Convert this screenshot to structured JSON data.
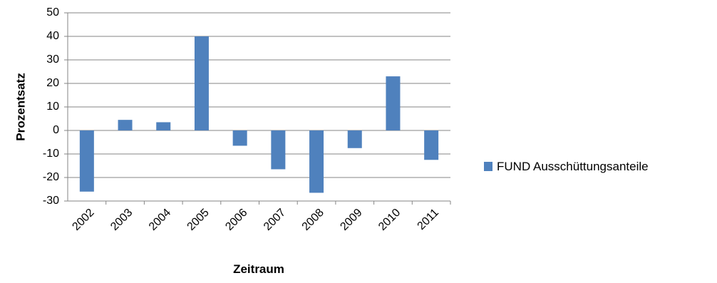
{
  "chart_data": {
    "type": "bar",
    "categories": [
      "2002",
      "2003",
      "2004",
      "2005",
      "2006",
      "2007",
      "2008",
      "2009",
      "2010",
      "2011"
    ],
    "series": [
      {
        "name": "FUND Ausschüttungsanteile",
        "color": "#4F81BD",
        "values": [
          -26,
          4.5,
          3.5,
          40,
          -6.5,
          -16.5,
          -26.5,
          -7.5,
          23,
          -12.5
        ]
      }
    ],
    "xlabel": "Zeitraum",
    "ylabel": "Prozentsatz",
    "ylim": [
      -30,
      50
    ],
    "yticks": [
      50,
      40,
      30,
      20,
      10,
      0,
      -10,
      -20,
      -30
    ],
    "grid": true,
    "legend_position": "right"
  }
}
